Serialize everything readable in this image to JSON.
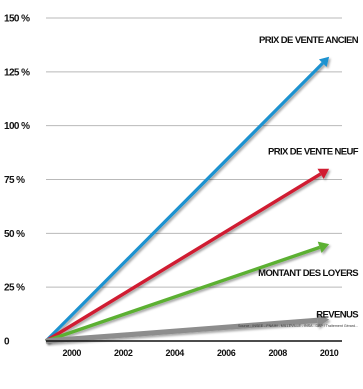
{
  "chart_data": {
    "type": "line",
    "title": "",
    "xlabel": "",
    "ylabel": "",
    "x_ticks": [
      "2000",
      "2002",
      "2004",
      "2006",
      "2008",
      "2010"
    ],
    "y_ticks": [
      "0",
      "25 %",
      "50 %",
      "75 %",
      "100 %",
      "125 %",
      "150 %"
    ],
    "xlim": [
      1999,
      2010.5
    ],
    "ylim": [
      0,
      150
    ],
    "grid": true,
    "series": [
      {
        "name": "PRIX DE VENTE ANCIEN",
        "color": "#1c92d0",
        "x": [
          1999,
          2010
        ],
        "values": [
          0,
          132
        ]
      },
      {
        "name": "PRIX DE VENTE NEUF",
        "color": "#d01f32",
        "x": [
          1999,
          2010
        ],
        "values": [
          0,
          80
        ]
      },
      {
        "name": "MONTANT DES LOYERS",
        "color": "#5bb033",
        "x": [
          1999,
          2010
        ],
        "values": [
          0,
          45
        ]
      },
      {
        "name": "REVENUS",
        "color": "#8d8d8d",
        "x": [
          1999,
          2010
        ],
        "values": [
          0,
          10
        ]
      }
    ],
    "source": "Source : INSEE - FNAIM - MILLEVILLE - INSA - DSP / Traitement Gérard..."
  }
}
